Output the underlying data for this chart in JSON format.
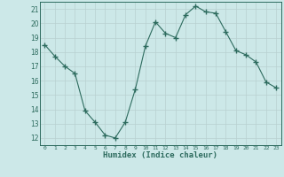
{
  "x": [
    0,
    1,
    2,
    3,
    4,
    5,
    6,
    7,
    8,
    9,
    10,
    11,
    12,
    13,
    14,
    15,
    16,
    17,
    18,
    19,
    20,
    21,
    22,
    23
  ],
  "y": [
    18.5,
    17.7,
    17.0,
    16.5,
    13.9,
    13.1,
    12.2,
    12.0,
    13.1,
    15.4,
    18.4,
    20.1,
    19.3,
    19.0,
    20.6,
    21.2,
    20.8,
    20.7,
    19.4,
    18.1,
    17.8,
    17.3,
    15.9,
    15.5
  ],
  "line_color": "#2d6b5e",
  "marker": "+",
  "marker_size": 4,
  "bg_color": "#cce8e8",
  "grid_color": "#b8d0d0",
  "xlabel": "Humidex (Indice chaleur)",
  "ylim": [
    11.5,
    21.5
  ],
  "xlim": [
    -0.5,
    23.5
  ],
  "yticks": [
    12,
    13,
    14,
    15,
    16,
    17,
    18,
    19,
    20,
    21
  ],
  "xtick_labels": [
    "0",
    "1",
    "2",
    "3",
    "4",
    "5",
    "6",
    "7",
    "8",
    "9",
    "10",
    "11",
    "12",
    "13",
    "14",
    "15",
    "16",
    "17",
    "18",
    "19",
    "20",
    "21",
    "22",
    "23"
  ]
}
